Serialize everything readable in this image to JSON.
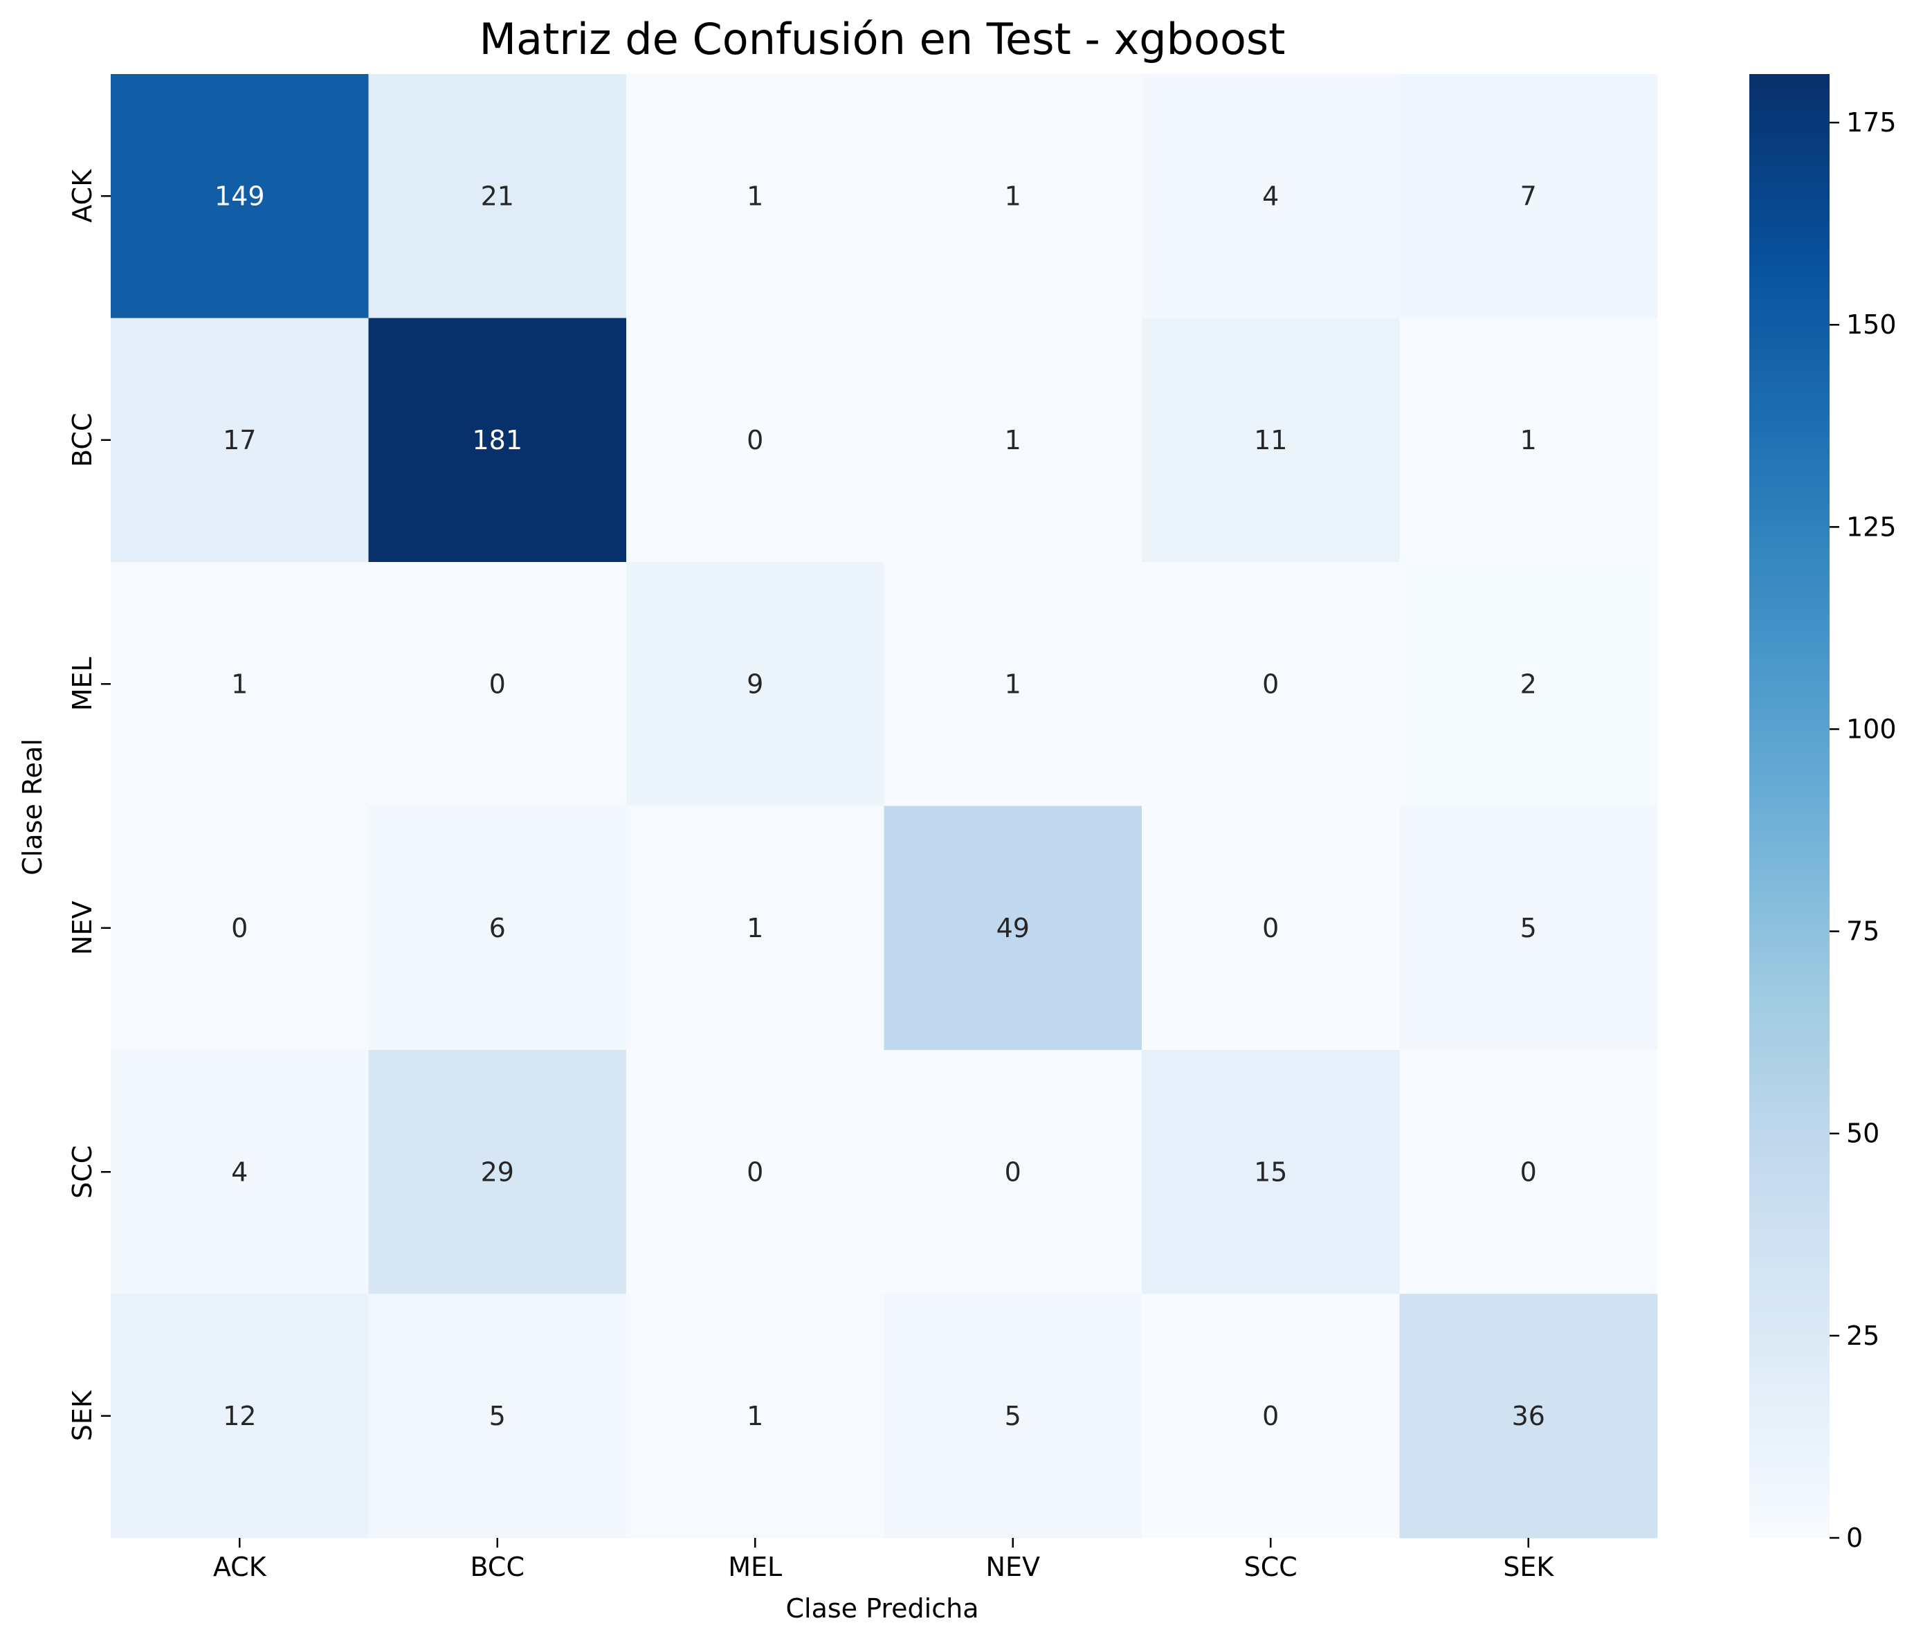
{
  "chart_data": {
    "type": "heatmap",
    "title": "Matriz de Confusión en Test - xgboost",
    "xlabel": "Clase Predicha",
    "ylabel": "Clase Real",
    "x_categories": [
      "ACK",
      "BCC",
      "MEL",
      "NEV",
      "SCC",
      "SEK"
    ],
    "y_categories": [
      "ACK",
      "BCC",
      "MEL",
      "NEV",
      "SCC",
      "SEK"
    ],
    "values": [
      [
        149,
        21,
        1,
        1,
        4,
        7
      ],
      [
        17,
        181,
        0,
        1,
        11,
        1
      ],
      [
        1,
        0,
        9,
        1,
        0,
        2
      ],
      [
        0,
        6,
        1,
        49,
        0,
        5
      ],
      [
        4,
        29,
        0,
        0,
        15,
        0
      ],
      [
        12,
        5,
        1,
        5,
        0,
        36
      ]
    ],
    "colormap": "Blues",
    "colorbar": {
      "range": [
        0,
        181
      ],
      "ticks": [
        0,
        25,
        50,
        75,
        100,
        125,
        150,
        175
      ]
    },
    "colors": {
      "low": "#f7fbff",
      "high": "#08306b",
      "text_light": "#ffffff",
      "text_dark": "#262626"
    }
  }
}
